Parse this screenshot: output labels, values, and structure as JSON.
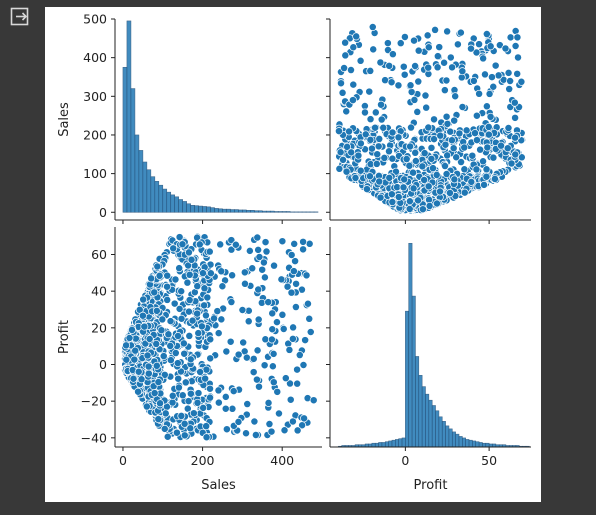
{
  "notebook": {
    "output_icon": "output-collapse-icon"
  },
  "chart_data": {
    "type": "pairplot",
    "variables": [
      "Sales",
      "Profit"
    ],
    "colors": {
      "marker": "#1f77b4",
      "edge": "#ffffff",
      "bar_edge": "#1f4e79"
    },
    "grid": false,
    "ranges": {
      "Sales": [
        -20,
        500
      ],
      "Profit": [
        -45,
        75
      ]
    },
    "ticks": {
      "Sales_y": [
        0,
        100,
        200,
        300,
        400,
        500
      ],
      "Sales_x": [
        0,
        200,
        400
      ],
      "Profit_y": [
        -40,
        -20,
        0,
        20,
        40,
        60
      ],
      "Profit_x": [
        0,
        50
      ]
    },
    "labels": {
      "y_top": "Sales",
      "y_bottom": "Profit",
      "x_left": "Sales",
      "x_right": "Profit"
    },
    "sales_hist": {
      "bin_width": 10,
      "bins_start": 0,
      "counts": [
        375,
        495,
        320,
        200,
        160,
        130,
        110,
        92,
        80,
        70,
        60,
        52,
        45,
        40,
        33,
        28,
        22,
        18,
        17,
        16,
        15,
        14,
        12,
        10,
        9,
        8,
        8,
        7,
        7,
        6,
        6,
        5,
        5,
        4,
        4,
        3,
        3,
        3,
        2,
        2,
        2,
        2,
        1,
        1,
        1,
        1,
        1,
        1,
        1
      ]
    },
    "profit_hist": {
      "bin_width": 2,
      "bins_start": -40,
      "counts": [
        1,
        2,
        2,
        2,
        2,
        3,
        3,
        3,
        4,
        4,
        5,
        5,
        6,
        6,
        7,
        8,
        9,
        10,
        11,
        12,
        180,
        270,
        200,
        120,
        95,
        80,
        70,
        62,
        55,
        48,
        40,
        34,
        28,
        24,
        20,
        17,
        14,
        12,
        10,
        9,
        8,
        7,
        6,
        5,
        5,
        4,
        4,
        3,
        3,
        3,
        2,
        2,
        2,
        2,
        1,
        1,
        1
      ]
    }
  }
}
